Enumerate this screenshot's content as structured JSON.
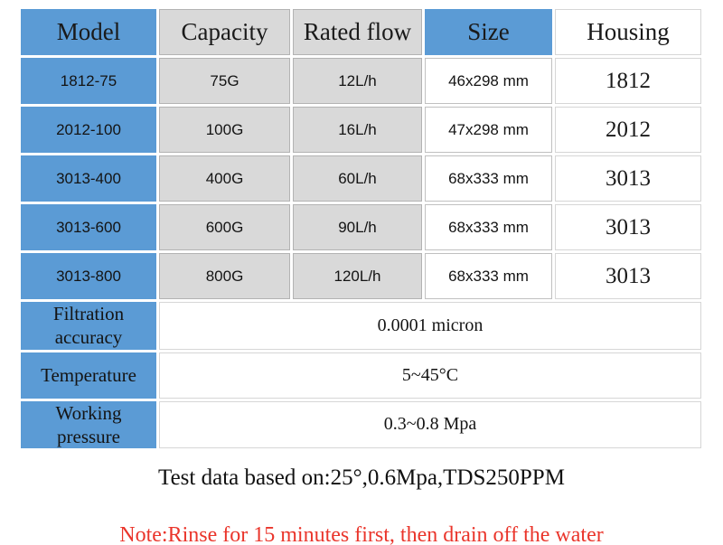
{
  "colors": {
    "header_blue": "#5b9bd5",
    "cell_gray": "#d9d9d9",
    "note_red": "#ea352b"
  },
  "table": {
    "headers": [
      "Model",
      "Capacity",
      "Rated flow",
      "Size",
      "Housing"
    ],
    "rows": [
      {
        "model": "1812-75",
        "capacity": "75G",
        "rated_flow": "12L/h",
        "size": "46x298 mm",
        "housing": "1812"
      },
      {
        "model": "2012-100",
        "capacity": "100G",
        "rated_flow": "16L/h",
        "size": "47x298 mm",
        "housing": "2012"
      },
      {
        "model": "3013-400",
        "capacity": "400G",
        "rated_flow": "60L/h",
        "size": "68x333 mm",
        "housing": "3013"
      },
      {
        "model": "3013-600",
        "capacity": "600G",
        "rated_flow": "90L/h",
        "size": "68x333 mm",
        "housing": "3013"
      },
      {
        "model": "3013-800",
        "capacity": "800G",
        "rated_flow": "120L/h",
        "size": "68x333 mm",
        "housing": "3013"
      }
    ],
    "spec_rows": [
      {
        "label": "Filtration accuracy",
        "value": "0.0001 micron"
      },
      {
        "label": "Temperature",
        "value": "5~45°C"
      },
      {
        "label": "Working pressure",
        "value": "0.3~0.8 Mpa"
      }
    ]
  },
  "notes": {
    "test": "Test data based on:25°,0.6Mpa,TDS250PPM",
    "warning": "Note:Rinse for 15 minutes first, then drain off the water"
  }
}
